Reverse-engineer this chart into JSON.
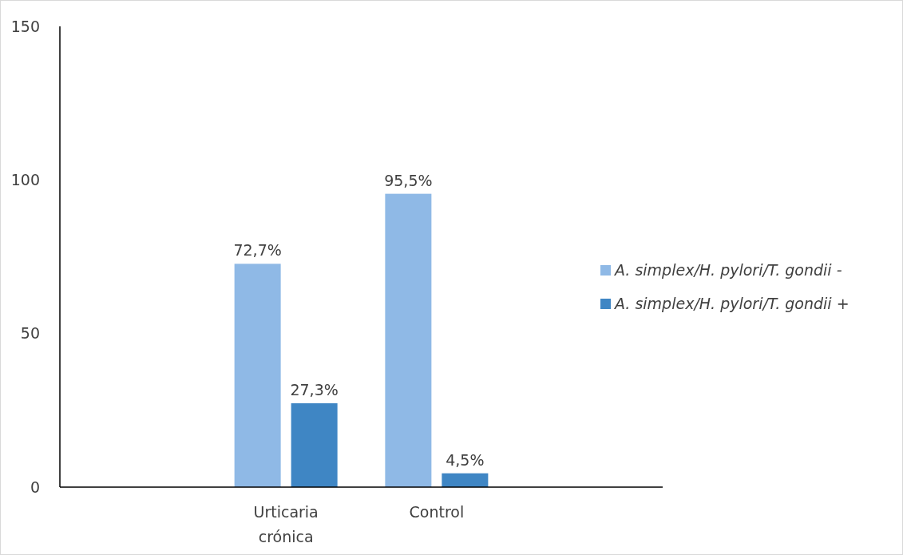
{
  "chart_data": {
    "type": "bar",
    "categories": [
      null,
      "Urticaria crónica",
      "Control",
      null
    ],
    "series": [
      {
        "name": "A. simplex/H. pylori/T. gondii -",
        "color": "#8fb9e6",
        "values": [
          null,
          72.7,
          95.5,
          null
        ],
        "value_labels": [
          null,
          "72,7%",
          "95,5%",
          null
        ]
      },
      {
        "name": "A. simplex/H. pylori/T. gondii +",
        "color": "#3f86c4",
        "values": [
          null,
          27.3,
          4.5,
          null
        ],
        "value_labels": [
          null,
          "27,3%",
          "4,5%",
          null
        ]
      }
    ],
    "ylim": [
      0,
      150
    ],
    "yticks": [
      0,
      50,
      100,
      150
    ],
    "grid": false,
    "legend": "right"
  }
}
